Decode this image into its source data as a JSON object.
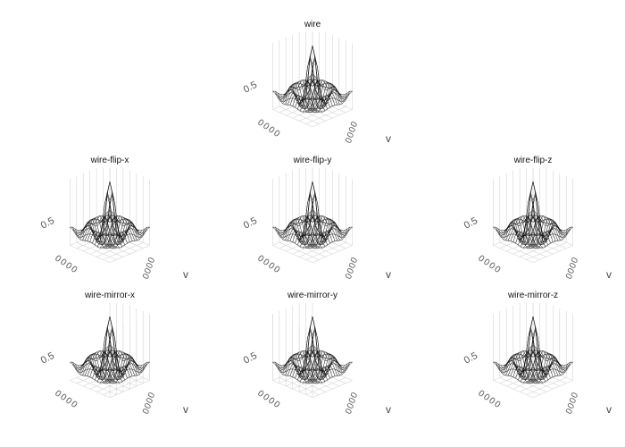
{
  "chart_data": [
    {
      "type": "surface",
      "style": "wire",
      "title": "wire",
      "z_tick": "0.5",
      "axis_ticks": [
        "0",
        "0",
        "0"
      ],
      "axis_label": "v",
      "flip": null,
      "mirror": null
    },
    {
      "type": "surface",
      "style": "wire",
      "title": "wire-flip-x",
      "z_tick": "0.5",
      "axis_ticks": [
        "0",
        "0",
        "0"
      ],
      "axis_label": "v",
      "flip": "x",
      "mirror": null
    },
    {
      "type": "surface",
      "style": "wire",
      "title": "wire-flip-y",
      "z_tick": "0.5",
      "axis_ticks": [
        "0",
        "0",
        "0"
      ],
      "axis_label": "v",
      "flip": "y",
      "mirror": null
    },
    {
      "type": "surface",
      "style": "wire",
      "title": "wire-flip-z",
      "z_tick": "0.5",
      "axis_ticks": [
        "0",
        "0",
        "0"
      ],
      "axis_label": "v",
      "flip": "z",
      "mirror": null
    },
    {
      "type": "surface",
      "style": "wire",
      "title": "wire-mirror-x",
      "z_tick": "0.5",
      "axis_ticks": [
        "0",
        "0",
        "0"
      ],
      "axis_label": "v",
      "flip": null,
      "mirror": "x"
    },
    {
      "type": "surface",
      "style": "wire",
      "title": "wire-mirror-y",
      "z_tick": "0.5",
      "axis_ticks": [
        "0",
        "0",
        "0"
      ],
      "axis_label": "v",
      "flip": null,
      "mirror": "y"
    },
    {
      "type": "surface",
      "style": "wire",
      "title": "wire-mirror-z",
      "z_tick": "0.5",
      "axis_ticks": [
        "0",
        "0",
        "0"
      ],
      "axis_label": "v",
      "flip": null,
      "mirror": "z"
    }
  ],
  "colors": {
    "wire": "#111111",
    "grid": "#d6d6d6",
    "text": "#555555"
  }
}
